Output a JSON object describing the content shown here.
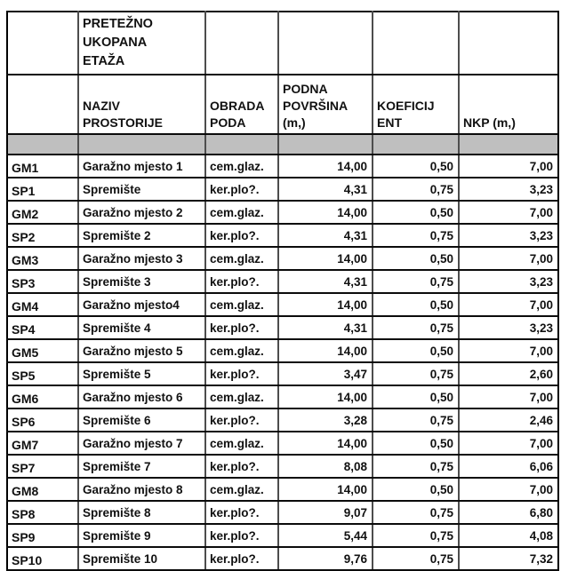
{
  "colors": {
    "spacer_band": "#bfbfbf",
    "grid_line": "#000000",
    "text": "#111111"
  },
  "table": {
    "title_cell": "PRETEŽNO\nUKOPANA\nETAŽA",
    "headers": [
      "",
      "NAZIV\nPROSTORIJE",
      "OBRADA\nPODA",
      "PODNA\nPOVRŠINA\n(m,)",
      "KOEFICIJ\nENT",
      "NKP (m,)"
    ],
    "rows": [
      {
        "code": "GM1",
        "name": "Garažno mjesto 1",
        "floor": "cem.glaz.",
        "area": "14,00",
        "coef": "0,50",
        "nkp": "7,00"
      },
      {
        "code": "SP1",
        "name": "Spremište",
        "floor": "ker.plo?.",
        "area": "4,31",
        "coef": "0,75",
        "nkp": "3,23"
      },
      {
        "code": "GM2",
        "name": "Garažno mjesto 2",
        "floor": "cem.glaz.",
        "area": "14,00",
        "coef": "0,50",
        "nkp": "7,00"
      },
      {
        "code": "SP2",
        "name": "Spremište 2",
        "floor": "ker.plo?.",
        "area": "4,31",
        "coef": "0,75",
        "nkp": "3,23"
      },
      {
        "code": "GM3",
        "name": "Garažno mjesto 3",
        "floor": "cem.glaz.",
        "area": "14,00",
        "coef": "0,50",
        "nkp": "7,00"
      },
      {
        "code": "SP3",
        "name": "Spremište 3",
        "floor": "ker.plo?.",
        "area": "4,31",
        "coef": "0,75",
        "nkp": "3,23"
      },
      {
        "code": "GM4",
        "name": "Garažno mjesto4",
        "floor": "cem.glaz.",
        "area": "14,00",
        "coef": "0,50",
        "nkp": "7,00"
      },
      {
        "code": "SP4",
        "name": "Spremište 4",
        "floor": "ker.plo?.",
        "area": "4,31",
        "coef": "0,75",
        "nkp": "3,23"
      },
      {
        "code": "GM5",
        "name": "Garažno mjesto 5",
        "floor": "cem.glaz.",
        "area": "14,00",
        "coef": "0,50",
        "nkp": "7,00"
      },
      {
        "code": "SP5",
        "name": "Spremište 5",
        "floor": "ker.plo?.",
        "area": "3,47",
        "coef": "0,75",
        "nkp": "2,60"
      },
      {
        "code": "GM6",
        "name": "Garažno mjesto 6",
        "floor": "cem.glaz.",
        "area": "14,00",
        "coef": "0,50",
        "nkp": "7,00"
      },
      {
        "code": "SP6",
        "name": "Spremište 6",
        "floor": "ker.plo?.",
        "area": "3,28",
        "coef": "0,75",
        "nkp": "2,46"
      },
      {
        "code": "GM7",
        "name": "Garažno mjesto 7",
        "floor": "cem.glaz.",
        "area": "14,00",
        "coef": "0,50",
        "nkp": "7,00"
      },
      {
        "code": "SP7",
        "name": "Spremište 7",
        "floor": "ker.plo?.",
        "area": "8,08",
        "coef": "0,75",
        "nkp": "6,06"
      },
      {
        "code": "GM8",
        "name": "Garažno mjesto 8",
        "floor": "cem.glaz.",
        "area": "14,00",
        "coef": "0,50",
        "nkp": "7,00"
      },
      {
        "code": "SP8",
        "name": "Spremište 8",
        "floor": "ker.plo?.",
        "area": "9,07",
        "coef": "0,75",
        "nkp": "6,80"
      },
      {
        "code": "SP9",
        "name": "Spremište 9",
        "floor": "ker.plo?.",
        "area": "5,44",
        "coef": "0,75",
        "nkp": "4,08"
      },
      {
        "code": "SP10",
        "name": "Spremište 10",
        "floor": "ker.plo?.",
        "area": "9,76",
        "coef": "0,75",
        "nkp": "7,32"
      }
    ]
  }
}
